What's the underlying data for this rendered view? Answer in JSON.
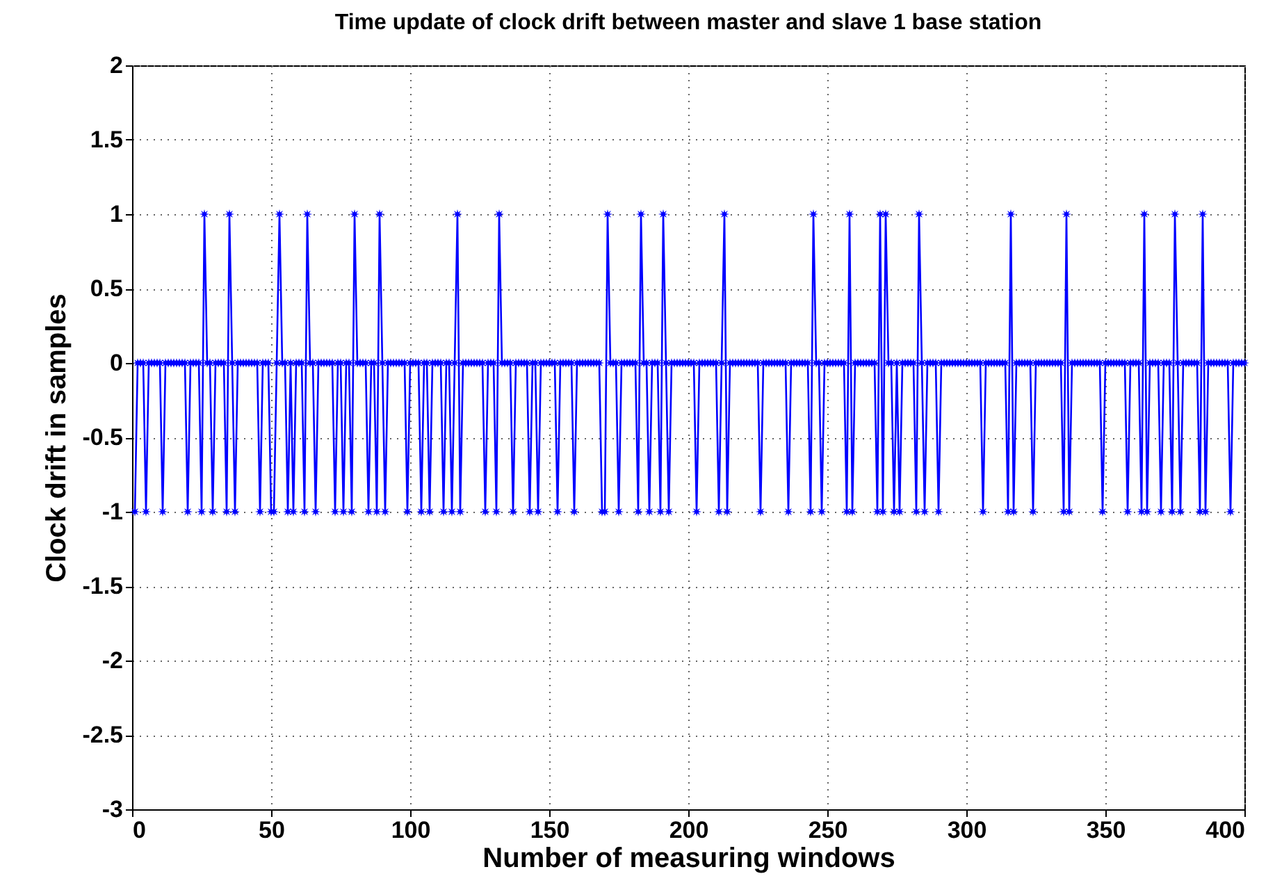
{
  "chart_data": {
    "type": "line",
    "title": "Time update of clock drift between master and slave 1 base station",
    "xlabel": "Number of measuring windows",
    "ylabel": "Clock drift in samples",
    "x": [
      1,
      2,
      3,
      4,
      5,
      6,
      7,
      8,
      9,
      10,
      11,
      12,
      13,
      14,
      15,
      16,
      17,
      18,
      19,
      20,
      21,
      22,
      23,
      24,
      25,
      26,
      27,
      28,
      29,
      30,
      31,
      32,
      33,
      34,
      35,
      36,
      37,
      38,
      39,
      40,
      41,
      42,
      43,
      44,
      45,
      46,
      47,
      48,
      49,
      50,
      51,
      52,
      53,
      54,
      55,
      56,
      57,
      58,
      59,
      60,
      61,
      62,
      63,
      64,
      65,
      66,
      67,
      68,
      69,
      70,
      71,
      72,
      73,
      74,
      75,
      76,
      77,
      78,
      79,
      80,
      81,
      82,
      83,
      84,
      85,
      86,
      87,
      88,
      89,
      90,
      91,
      92,
      93,
      94,
      95,
      96,
      97,
      98,
      99,
      100,
      101,
      102,
      103,
      104,
      105,
      106,
      107,
      108,
      109,
      110,
      111,
      112,
      113,
      114,
      115,
      116,
      117,
      118,
      119,
      120,
      121,
      122,
      123,
      124,
      125,
      126,
      127,
      128,
      129,
      130,
      131,
      132,
      133,
      134,
      135,
      136,
      137,
      138,
      139,
      140,
      141,
      142,
      143,
      144,
      145,
      146,
      147,
      148,
      149,
      150,
      151,
      152,
      153,
      154,
      155,
      156,
      157,
      158,
      159,
      160,
      161,
      162,
      163,
      164,
      165,
      166,
      167,
      168,
      169,
      170,
      171,
      172,
      173,
      174,
      175,
      176,
      177,
      178,
      179,
      180,
      181,
      182,
      183,
      184,
      185,
      186,
      187,
      188,
      189,
      190,
      191,
      192,
      193,
      194,
      195,
      196,
      197,
      198,
      199,
      200,
      201,
      202,
      203,
      204,
      205,
      206,
      207,
      208,
      209,
      210,
      211,
      212,
      213,
      214,
      215,
      216,
      217,
      218,
      219,
      220,
      221,
      222,
      223,
      224,
      225,
      226,
      227,
      228,
      229,
      230,
      231,
      232,
      233,
      234,
      235,
      236,
      237,
      238,
      239,
      240,
      241,
      242,
      243,
      244,
      245,
      246,
      247,
      248,
      249,
      250,
      251,
      252,
      253,
      254,
      255,
      256,
      257,
      258,
      259,
      260,
      261,
      262,
      263,
      264,
      265,
      266,
      267,
      268,
      269,
      270,
      271,
      272,
      273,
      274,
      275,
      276,
      277,
      278,
      279,
      280,
      281,
      282,
      283,
      284,
      285,
      286,
      287,
      288,
      289,
      290,
      291,
      292,
      293,
      294,
      295,
      296,
      297,
      298,
      299,
      300,
      301,
      302,
      303,
      304,
      305,
      306,
      307,
      308,
      309,
      310,
      311,
      312,
      313,
      314,
      315,
      316,
      317,
      318,
      319,
      320,
      321,
      322,
      323,
      324,
      325,
      326,
      327,
      328,
      329,
      330,
      331,
      332,
      333,
      334,
      335,
      336,
      337,
      338,
      339,
      340,
      341,
      342,
      343,
      344,
      345,
      346,
      347,
      348,
      349,
      350,
      351,
      352,
      353,
      354,
      355,
      356,
      357,
      358,
      359,
      360,
      361,
      362,
      363,
      364,
      365,
      366,
      367,
      368,
      369,
      370,
      371,
      372,
      373,
      374,
      375,
      376,
      377,
      378,
      379,
      380,
      381,
      382,
      383,
      384,
      385,
      386,
      387,
      388,
      389,
      390,
      391,
      392,
      393,
      394,
      395,
      396,
      397,
      398,
      399,
      400
    ],
    "values": [
      -1,
      0,
      0,
      0,
      -1,
      0,
      0,
      0,
      0,
      0,
      -1,
      0,
      0,
      0,
      0,
      0,
      0,
      0,
      0,
      -1,
      0,
      0,
      0,
      0,
      -1,
      1,
      0,
      0,
      -1,
      0,
      0,
      0,
      0,
      -1,
      1,
      0,
      -1,
      0,
      0,
      0,
      0,
      0,
      0,
      0,
      0,
      -1,
      0,
      0,
      0,
      -1,
      -1,
      0,
      1,
      0,
      0,
      -1,
      0,
      -1,
      0,
      0,
      0,
      -1,
      1,
      0,
      0,
      -1,
      0,
      0,
      0,
      0,
      0,
      0,
      -1,
      0,
      0,
      -1,
      0,
      0,
      -1,
      1,
      0,
      0,
      0,
      0,
      -1,
      0,
      0,
      -1,
      1,
      0,
      -1,
      0,
      0,
      0,
      0,
      0,
      0,
      0,
      -1,
      0,
      0,
      0,
      0,
      -1,
      0,
      0,
      -1,
      0,
      0,
      0,
      0,
      -1,
      0,
      0,
      -1,
      0,
      1,
      -1,
      0,
      0,
      0,
      0,
      0,
      0,
      0,
      0,
      -1,
      0,
      0,
      0,
      -1,
      1,
      0,
      0,
      0,
      0,
      -1,
      0,
      0,
      0,
      0,
      0,
      -1,
      0,
      0,
      -1,
      0,
      0,
      0,
      0,
      0,
      0,
      -1,
      0,
      0,
      0,
      0,
      0,
      -1,
      0,
      0,
      0,
      0,
      0,
      0,
      0,
      0,
      0,
      -1,
      -1,
      1,
      0,
      0,
      0,
      -1,
      0,
      0,
      0,
      0,
      0,
      0,
      -1,
      1,
      0,
      0,
      -1,
      0,
      0,
      0,
      -1,
      1,
      0,
      -1,
      0,
      0,
      0,
      0,
      0,
      0,
      0,
      0,
      0,
      -1,
      0,
      0,
      0,
      0,
      0,
      0,
      0,
      -1,
      0,
      1,
      -1,
      0,
      0,
      0,
      0,
      0,
      0,
      0,
      0,
      0,
      0,
      0,
      -1,
      0,
      0,
      0,
      0,
      0,
      0,
      0,
      0,
      0,
      -1,
      0,
      0,
      0,
      0,
      0,
      0,
      0,
      -1,
      1,
      0,
      0,
      -1,
      0,
      0,
      0,
      0,
      0,
      0,
      0,
      0,
      -1,
      1,
      -1,
      0,
      0,
      0,
      0,
      0,
      0,
      0,
      0,
      -1,
      1,
      -1,
      1,
      0,
      0,
      -1,
      0,
      -1,
      0,
      0,
      0,
      0,
      0,
      -1,
      1,
      0,
      -1,
      0,
      0,
      0,
      0,
      -1,
      0,
      0,
      0,
      0,
      0,
      0,
      0,
      0,
      0,
      0,
      0,
      0,
      0,
      0,
      0,
      -1,
      0,
      0,
      0,
      0,
      0,
      0,
      0,
      0,
      -1,
      1,
      -1,
      0,
      0,
      0,
      0,
      0,
      0,
      -1,
      0,
      0,
      0,
      0,
      0,
      0,
      0,
      0,
      0,
      0,
      -1,
      1,
      -1,
      0,
      0,
      0,
      0,
      0,
      0,
      0,
      0,
      0,
      0,
      0,
      -1,
      0,
      0,
      0,
      0,
      0,
      0,
      0,
      0,
      -1,
      0,
      0,
      0,
      0,
      -1,
      1,
      -1,
      0,
      0,
      0,
      0,
      -1,
      0,
      0,
      0,
      -1,
      1,
      0,
      -1,
      0,
      0,
      0,
      0,
      0,
      0,
      -1,
      1,
      -1,
      0,
      0,
      0,
      0,
      0,
      0,
      0,
      0,
      -1,
      0,
      0,
      0,
      0,
      0
    ],
    "color": "#0000ff",
    "marker": "star",
    "line_style": "solid",
    "grid": true,
    "xlim": [
      0,
      400
    ],
    "xticks": [
      0,
      50,
      100,
      150,
      200,
      250,
      300,
      350,
      400
    ],
    "ylim": [
      -3,
      2
    ],
    "yticks": [
      -3,
      -2.5,
      -2,
      -1.5,
      -1,
      -0.5,
      0,
      0.5,
      1,
      1.5,
      2
    ]
  }
}
